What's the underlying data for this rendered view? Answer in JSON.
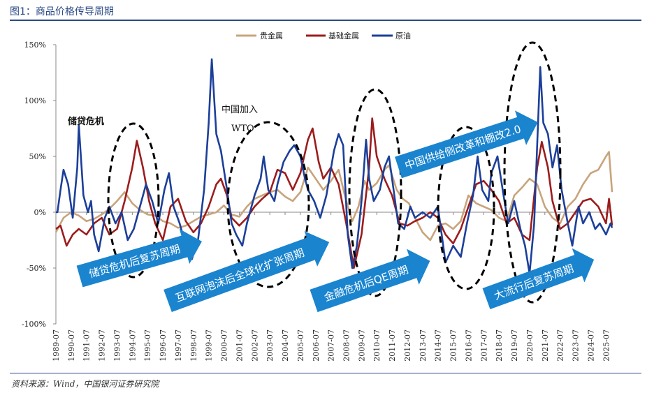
{
  "figure_title": "图1：商品价格传导周期",
  "source": "资料来源：Wind，中国银河证券研究院",
  "chart_data": {
    "type": "line",
    "ylim": [
      -100,
      150
    ],
    "yticks": [
      -100,
      -50,
      0,
      50,
      100,
      150
    ],
    "ytick_labels": [
      "-100%",
      "-50%",
      "0%",
      "50%",
      "100%",
      "150%"
    ],
    "x_labels": [
      "1989-07",
      "1990-07",
      "1991-07",
      "1992-07",
      "1993-07",
      "1994-07",
      "1995-07",
      "1996-07",
      "1997-07",
      "1998-07",
      "1999-07",
      "2000-07",
      "2001-07",
      "2002-07",
      "2003-07",
      "2004-07",
      "2005-07",
      "2006-07",
      "2007-07",
      "2008-07",
      "2009-07",
      "2010-07",
      "2011-07",
      "2012-07",
      "2013-07",
      "2014-07",
      "2015-07",
      "2016-07",
      "2017-07",
      "2018-07",
      "2019-07",
      "2020-07",
      "2021-07",
      "2022-07",
      "2023-07",
      "2024-07",
      "2025-07"
    ],
    "x_start": 1989.5,
    "x_end": 2025.9,
    "legend_position": "top-center",
    "series": [
      {
        "name": "贵金属",
        "color": "#c8a47c",
        "points": [
          [
            1989.5,
            -18
          ],
          [
            1990.0,
            -5
          ],
          [
            1990.5,
            0
          ],
          [
            1991.0,
            -3
          ],
          [
            1991.5,
            -8
          ],
          [
            1992.0,
            -6
          ],
          [
            1992.5,
            -2
          ],
          [
            1993.0,
            3
          ],
          [
            1993.5,
            10
          ],
          [
            1994.0,
            18
          ],
          [
            1994.5,
            8
          ],
          [
            1995.0,
            2
          ],
          [
            1995.5,
            -2
          ],
          [
            1996.0,
            -3
          ],
          [
            1996.5,
            -8
          ],
          [
            1997.0,
            -10
          ],
          [
            1997.5,
            -14
          ],
          [
            1998.0,
            -12
          ],
          [
            1998.5,
            -8
          ],
          [
            1999.0,
            -4
          ],
          [
            1999.5,
            -2
          ],
          [
            2000.0,
            0
          ],
          [
            2000.5,
            6
          ],
          [
            2001.0,
            -2
          ],
          [
            2001.5,
            -4
          ],
          [
            2002.0,
            5
          ],
          [
            2002.5,
            12
          ],
          [
            2003.0,
            15
          ],
          [
            2003.5,
            18
          ],
          [
            2004.0,
            20
          ],
          [
            2004.5,
            14
          ],
          [
            2005.0,
            10
          ],
          [
            2005.5,
            18
          ],
          [
            2006.0,
            40
          ],
          [
            2006.5,
            30
          ],
          [
            2007.0,
            20
          ],
          [
            2007.5,
            28
          ],
          [
            2008.0,
            38
          ],
          [
            2008.5,
            10
          ],
          [
            2008.9,
            -8
          ],
          [
            2009.3,
            5
          ],
          [
            2009.7,
            28
          ],
          [
            2010.0,
            20
          ],
          [
            2010.5,
            26
          ],
          [
            2011.0,
            38
          ],
          [
            2011.3,
            42
          ],
          [
            2011.8,
            20
          ],
          [
            2012.2,
            12
          ],
          [
            2012.6,
            8
          ],
          [
            2013.0,
            -5
          ],
          [
            2013.5,
            -18
          ],
          [
            2014.0,
            -25
          ],
          [
            2014.5,
            -12
          ],
          [
            2015.0,
            -10
          ],
          [
            2015.5,
            -15
          ],
          [
            2016.0,
            -8
          ],
          [
            2016.5,
            15
          ],
          [
            2017.0,
            8
          ],
          [
            2017.5,
            5
          ],
          [
            2018.0,
            2
          ],
          [
            2018.5,
            -5
          ],
          [
            2019.0,
            -8
          ],
          [
            2019.5,
            15
          ],
          [
            2020.0,
            22
          ],
          [
            2020.5,
            30
          ],
          [
            2021.0,
            25
          ],
          [
            2021.5,
            5
          ],
          [
            2022.0,
            -5
          ],
          [
            2022.5,
            -10
          ],
          [
            2023.0,
            5
          ],
          [
            2023.5,
            12
          ],
          [
            2024.0,
            25
          ],
          [
            2024.5,
            35
          ],
          [
            2025.0,
            38
          ],
          [
            2025.5,
            50
          ],
          [
            2025.7,
            54
          ],
          [
            2025.9,
            18
          ]
        ]
      },
      {
        "name": "基础金属",
        "color": "#9c1c1c",
        "points": [
          [
            1989.5,
            -15
          ],
          [
            1989.8,
            -12
          ],
          [
            1990.2,
            -30
          ],
          [
            1990.6,
            -20
          ],
          [
            1991.0,
            -15
          ],
          [
            1991.5,
            -20
          ],
          [
            1992.0,
            -10
          ],
          [
            1992.5,
            -5
          ],
          [
            1993.0,
            -20
          ],
          [
            1993.5,
            -15
          ],
          [
            1994.0,
            10
          ],
          [
            1994.5,
            40
          ],
          [
            1994.8,
            64
          ],
          [
            1995.2,
            40
          ],
          [
            1995.6,
            10
          ],
          [
            1996.0,
            -10
          ],
          [
            1996.5,
            -25
          ],
          [
            1997.0,
            5
          ],
          [
            1997.5,
            12
          ],
          [
            1998.0,
            -8
          ],
          [
            1998.5,
            -18
          ],
          [
            1999.0,
            -10
          ],
          [
            1999.5,
            5
          ],
          [
            2000.0,
            25
          ],
          [
            2000.3,
            30
          ],
          [
            2000.7,
            15
          ],
          [
            2001.0,
            -5
          ],
          [
            2001.5,
            -12
          ],
          [
            2002.0,
            -5
          ],
          [
            2002.5,
            5
          ],
          [
            2003.0,
            12
          ],
          [
            2003.5,
            18
          ],
          [
            2004.0,
            38
          ],
          [
            2004.5,
            35
          ],
          [
            2005.0,
            20
          ],
          [
            2005.5,
            35
          ],
          [
            2006.0,
            65
          ],
          [
            2006.3,
            75
          ],
          [
            2006.7,
            45
          ],
          [
            2007.0,
            30
          ],
          [
            2007.5,
            40
          ],
          [
            2008.0,
            25
          ],
          [
            2008.5,
            -10
          ],
          [
            2009.0,
            -50
          ],
          [
            2009.5,
            -20
          ],
          [
            2010.0,
            40
          ],
          [
            2010.2,
            84
          ],
          [
            2010.5,
            50
          ],
          [
            2011.0,
            30
          ],
          [
            2011.5,
            15
          ],
          [
            2012.0,
            -10
          ],
          [
            2012.5,
            -12
          ],
          [
            2013.0,
            -8
          ],
          [
            2013.5,
            -5
          ],
          [
            2014.0,
            0
          ],
          [
            2014.5,
            -5
          ],
          [
            2015.0,
            -20
          ],
          [
            2015.5,
            -28
          ],
          [
            2016.0,
            -15
          ],
          [
            2016.5,
            5
          ],
          [
            2017.0,
            25
          ],
          [
            2017.5,
            28
          ],
          [
            2018.0,
            20
          ],
          [
            2018.5,
            10
          ],
          [
            2019.0,
            -10
          ],
          [
            2019.5,
            -5
          ],
          [
            2020.0,
            -20
          ],
          [
            2020.5,
            -25
          ],
          [
            2021.0,
            40
          ],
          [
            2021.3,
            63
          ],
          [
            2021.7,
            40
          ],
          [
            2022.0,
            10
          ],
          [
            2022.5,
            -15
          ],
          [
            2023.0,
            -10
          ],
          [
            2023.5,
            0
          ],
          [
            2024.0,
            10
          ],
          [
            2024.5,
            12
          ],
          [
            2025.0,
            5
          ],
          [
            2025.5,
            -10
          ],
          [
            2025.7,
            12
          ],
          [
            2025.9,
            -12
          ]
        ]
      },
      {
        "name": "原油",
        "color": "#1c3f9a",
        "points": [
          [
            1989.5,
            0
          ],
          [
            1989.6,
            0
          ],
          [
            1989.8,
            20
          ],
          [
            1990.0,
            38
          ],
          [
            1990.3,
            25
          ],
          [
            1990.6,
            -5
          ],
          [
            1990.9,
            40
          ],
          [
            1991.0,
            78
          ],
          [
            1991.3,
            15
          ],
          [
            1991.6,
            0
          ],
          [
            1991.8,
            10
          ],
          [
            1992.0,
            -20
          ],
          [
            1992.3,
            -35
          ],
          [
            1992.7,
            -5
          ],
          [
            1993.0,
            5
          ],
          [
            1993.4,
            -10
          ],
          [
            1993.8,
            0
          ],
          [
            1994.2,
            -25
          ],
          [
            1994.6,
            -15
          ],
          [
            1995.0,
            5
          ],
          [
            1995.4,
            25
          ],
          [
            1995.8,
            10
          ],
          [
            1996.2,
            -10
          ],
          [
            1996.6,
            20
          ],
          [
            1996.9,
            35
          ],
          [
            1997.2,
            5
          ],
          [
            1997.6,
            -10
          ],
          [
            1998.0,
            -30
          ],
          [
            1998.4,
            -42
          ],
          [
            1998.8,
            -25
          ],
          [
            1999.2,
            20
          ],
          [
            1999.5,
            80
          ],
          [
            1999.7,
            137
          ],
          [
            2000.0,
            70
          ],
          [
            2000.3,
            55
          ],
          [
            2000.7,
            20
          ],
          [
            2001.0,
            -10
          ],
          [
            2001.3,
            -20
          ],
          [
            2001.7,
            -30
          ],
          [
            2002.0,
            -10
          ],
          [
            2002.5,
            15
          ],
          [
            2002.9,
            30
          ],
          [
            2003.1,
            50
          ],
          [
            2003.4,
            20
          ],
          [
            2003.8,
            10
          ],
          [
            2004.0,
            25
          ],
          [
            2004.4,
            45
          ],
          [
            2004.8,
            55
          ],
          [
            2005.1,
            60
          ],
          [
            2005.5,
            50
          ],
          [
            2005.8,
            30
          ],
          [
            2006.0,
            20
          ],
          [
            2006.4,
            10
          ],
          [
            2006.8,
            -5
          ],
          [
            2007.2,
            15
          ],
          [
            2007.7,
            55
          ],
          [
            2008.0,
            70
          ],
          [
            2008.3,
            60
          ],
          [
            2008.6,
            -20
          ],
          [
            2008.9,
            -50
          ],
          [
            2009.2,
            -30
          ],
          [
            2009.5,
            10
          ],
          [
            2009.8,
            65
          ],
          [
            2010.0,
            30
          ],
          [
            2010.3,
            10
          ],
          [
            2010.7,
            20
          ],
          [
            2011.0,
            40
          ],
          [
            2011.3,
            50
          ],
          [
            2011.6,
            20
          ],
          [
            2011.9,
            -10
          ],
          [
            2012.3,
            -15
          ],
          [
            2012.7,
            5
          ],
          [
            2013.0,
            -5
          ],
          [
            2013.5,
            0
          ],
          [
            2014.0,
            -5
          ],
          [
            2014.5,
            5
          ],
          [
            2015.0,
            -45
          ],
          [
            2015.5,
            -30
          ],
          [
            2016.0,
            -40
          ],
          [
            2016.4,
            -10
          ],
          [
            2016.8,
            15
          ],
          [
            2017.1,
            50
          ],
          [
            2017.4,
            20
          ],
          [
            2017.8,
            10
          ],
          [
            2018.0,
            35
          ],
          [
            2018.4,
            50
          ],
          [
            2018.8,
            15
          ],
          [
            2019.1,
            -10
          ],
          [
            2019.5,
            10
          ],
          [
            2019.9,
            -15
          ],
          [
            2020.2,
            -30
          ],
          [
            2020.5,
            -55
          ],
          [
            2020.8,
            -10
          ],
          [
            2021.0,
            60
          ],
          [
            2021.2,
            130
          ],
          [
            2021.4,
            80
          ],
          [
            2021.7,
            70
          ],
          [
            2022.0,
            40
          ],
          [
            2022.3,
            60
          ],
          [
            2022.6,
            20
          ],
          [
            2023.0,
            -10
          ],
          [
            2023.3,
            -30
          ],
          [
            2023.7,
            5
          ],
          [
            2024.0,
            -10
          ],
          [
            2024.4,
            0
          ],
          [
            2024.8,
            -15
          ],
          [
            2025.1,
            -10
          ],
          [
            2025.5,
            -20
          ],
          [
            2025.8,
            -10
          ],
          [
            2025.9,
            -14
          ]
        ]
      }
    ],
    "annotations": {
      "sl_crisis": "储贷危机",
      "china_wto_1": "中国加入",
      "china_wto_2": "WTO"
    },
    "arrows": [
      {
        "label": "储贷危机后复苏周期"
      },
      {
        "label": "互联网泡沫后全球化扩张周期"
      },
      {
        "label": "金融危机后QE周期"
      },
      {
        "label": "中国供给侧改革和棚改2.0"
      },
      {
        "label": "大流行后复苏周期"
      }
    ],
    "arrow_color": "#1a84cf"
  }
}
